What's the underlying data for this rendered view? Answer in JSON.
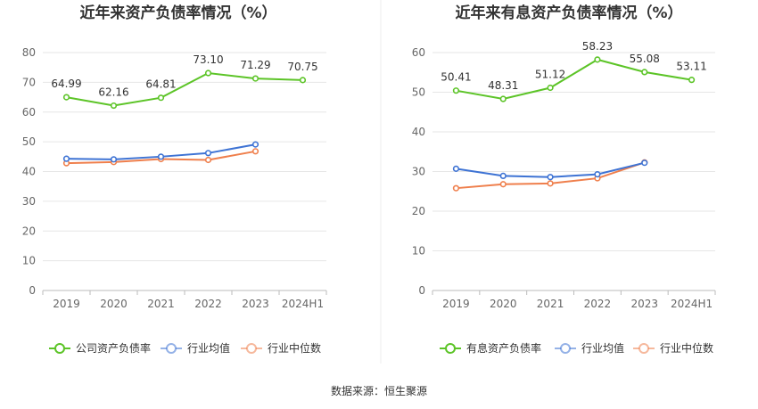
{
  "source_note": "数据来源：恒生聚源",
  "chart_data": [
    {
      "type": "line",
      "title": "近年来资产负债率情况（%）",
      "categories": [
        "2019",
        "2020",
        "2021",
        "2022",
        "2023",
        "2024H1"
      ],
      "ylim": [
        0,
        80
      ],
      "yticks": [
        0,
        10,
        20,
        30,
        40,
        50,
        60,
        70,
        80
      ],
      "grid": true,
      "legend_position": "bottom",
      "series": [
        {
          "name": "公司资产负债率",
          "color": "#5cc427",
          "values": [
            64.99,
            62.16,
            64.81,
            73.1,
            71.29,
            70.75
          ],
          "labels": [
            "64.99",
            "62.16",
            "64.81",
            "73.10",
            "71.29",
            "70.75"
          ]
        },
        {
          "name": "行业均值",
          "color": "#3e73d4",
          "values": [
            44.3,
            44.1,
            45.0,
            46.2,
            49.1,
            null
          ]
        },
        {
          "name": "行业中位数",
          "color": "#ef7f4c",
          "values": [
            42.8,
            43.2,
            44.2,
            43.9,
            46.8,
            null
          ]
        }
      ]
    },
    {
      "type": "line",
      "title": "近年来有息资产负债率情况（%）",
      "categories": [
        "2019",
        "2020",
        "2021",
        "2022",
        "2023",
        "2024H1"
      ],
      "ylim": [
        0,
        60
      ],
      "yticks": [
        0,
        10,
        20,
        30,
        40,
        50,
        60
      ],
      "grid": true,
      "legend_position": "bottom",
      "series": [
        {
          "name": "有息资产负债率",
          "color": "#5cc427",
          "values": [
            50.41,
            48.31,
            51.12,
            58.23,
            55.08,
            53.11
          ],
          "labels": [
            "50.41",
            "48.31",
            "51.12",
            "58.23",
            "55.08",
            "53.11"
          ]
        },
        {
          "name": "行业均值",
          "color": "#3e73d4",
          "values": [
            30.7,
            28.9,
            28.6,
            29.3,
            32.2,
            null
          ]
        },
        {
          "name": "行业中位数",
          "color": "#ef7f4c",
          "values": [
            25.8,
            26.8,
            27.0,
            28.3,
            32.3,
            null
          ]
        }
      ]
    }
  ]
}
